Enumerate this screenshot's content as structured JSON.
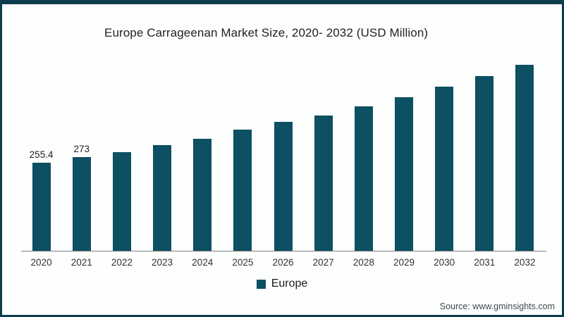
{
  "title": "Europe Carrageenan Market Size, 2020- 2032 (USD Million)",
  "legend": {
    "label": "Europe",
    "swatch_color": "#0d4f63"
  },
  "source": {
    "text": "Source: www.gminsights.com"
  },
  "colors": {
    "bar": "#0d4f63",
    "frame_border": "#0c3c4d",
    "axis_line": "#7f7f7f"
  },
  "chart_data": {
    "type": "bar",
    "title": "Europe Carrageenan Market Size, 2020- 2032 (USD Million)",
    "categories": [
      "2020",
      "2021",
      "2022",
      "2023",
      "2024",
      "2025",
      "2026",
      "2027",
      "2028",
      "2029",
      "2030",
      "2031",
      "2032"
    ],
    "series": [
      {
        "name": "Europe",
        "values": [
          255.4,
          273,
          286,
          307,
          325,
          352,
          374,
          393,
          419,
          446,
          476,
          507,
          540
        ]
      }
    ],
    "data_labels": [
      "255.4",
      "273",
      "",
      "",
      "",
      "",
      "",
      "",
      "",
      "",
      "",
      "",
      ""
    ],
    "xlabel": "",
    "ylabel": "USD Million",
    "ylim": [
      0,
      580
    ],
    "grid": false,
    "y_axis_visible": false,
    "legend_position": "bottom",
    "note": "only 2020 and 2021 values are labeled in the figure; remaining values estimated from bar heights"
  }
}
